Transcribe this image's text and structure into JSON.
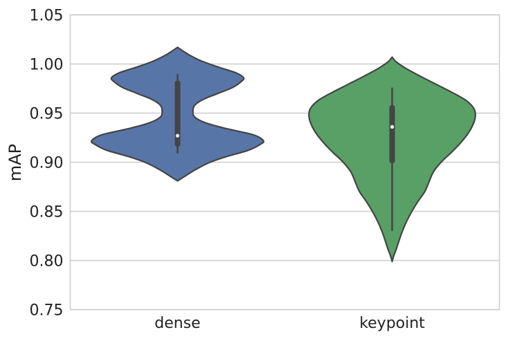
{
  "chart_data": {
    "type": "violin",
    "ylabel": "mAP",
    "xlabel": "",
    "ylim": [
      0.75,
      1.05
    ],
    "yticks": [
      0.75,
      0.8,
      0.85,
      0.9,
      0.95,
      1.0,
      1.05
    ],
    "ytick_labels": [
      "0.75",
      "0.80",
      "0.85",
      "0.90",
      "0.95",
      "1.00",
      "1.05"
    ],
    "grid": "horizontal",
    "categories": [
      "dense",
      "keypoint"
    ],
    "series": [
      {
        "category": "dense",
        "color": "#5875a8",
        "min": 0.909,
        "q1": 0.916,
        "median": 0.927,
        "q3": 0.983,
        "max": 0.99,
        "density_profile": [
          [
            0.881,
            0.0
          ],
          [
            0.886,
            0.09
          ],
          [
            0.893,
            0.22
          ],
          [
            0.9,
            0.38
          ],
          [
            0.906,
            0.58
          ],
          [
            0.912,
            0.82
          ],
          [
            0.918,
            0.96
          ],
          [
            0.922,
            1.0
          ],
          [
            0.928,
            0.88
          ],
          [
            0.934,
            0.58
          ],
          [
            0.94,
            0.33
          ],
          [
            0.946,
            0.2
          ],
          [
            0.952,
            0.18
          ],
          [
            0.958,
            0.2
          ],
          [
            0.964,
            0.3
          ],
          [
            0.97,
            0.47
          ],
          [
            0.976,
            0.64
          ],
          [
            0.982,
            0.74
          ],
          [
            0.986,
            0.77
          ],
          [
            0.991,
            0.68
          ],
          [
            0.997,
            0.47
          ],
          [
            1.003,
            0.28
          ],
          [
            1.009,
            0.14
          ],
          [
            1.014,
            0.05
          ],
          [
            1.017,
            0.0
          ]
        ]
      },
      {
        "category": "keypoint",
        "color": "#58a066",
        "min": 0.83,
        "q1": 0.899,
        "median": 0.936,
        "q3": 0.958,
        "max": 0.976,
        "density_profile": [
          [
            0.799,
            0.0
          ],
          [
            0.805,
            0.02
          ],
          [
            0.812,
            0.05
          ],
          [
            0.82,
            0.08
          ],
          [
            0.83,
            0.12
          ],
          [
            0.84,
            0.17
          ],
          [
            0.85,
            0.23
          ],
          [
            0.86,
            0.3
          ],
          [
            0.87,
            0.38
          ],
          [
            0.88,
            0.43
          ],
          [
            0.89,
            0.48
          ],
          [
            0.9,
            0.57
          ],
          [
            0.91,
            0.69
          ],
          [
            0.92,
            0.8
          ],
          [
            0.93,
            0.89
          ],
          [
            0.94,
            0.95
          ],
          [
            0.948,
            0.97
          ],
          [
            0.955,
            0.95
          ],
          [
            0.963,
            0.86
          ],
          [
            0.971,
            0.7
          ],
          [
            0.979,
            0.52
          ],
          [
            0.987,
            0.34
          ],
          [
            0.995,
            0.17
          ],
          [
            1.002,
            0.05
          ],
          [
            1.007,
            0.0
          ]
        ]
      }
    ]
  }
}
